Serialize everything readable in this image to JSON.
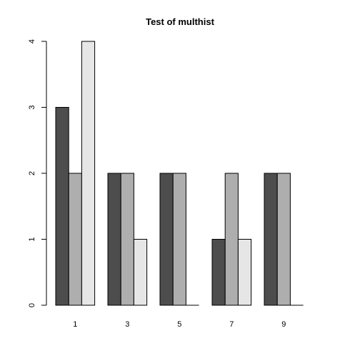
{
  "chart_data": {
    "type": "bar",
    "title": "Test of multhist",
    "xlabel": "",
    "ylabel": "",
    "categories": [
      "1",
      "3",
      "5",
      "7",
      "9"
    ],
    "series": [
      {
        "values": [
          3,
          2,
          2,
          1,
          2
        ],
        "color": "#4d4d4d"
      },
      {
        "values": [
          2,
          2,
          2,
          2,
          2
        ],
        "color": "#aeaeae"
      },
      {
        "values": [
          4,
          1,
          0,
          1,
          0
        ],
        "color": "#e6e6e6"
      }
    ],
    "ylim": [
      0,
      4
    ],
    "yticks": [
      "0",
      "1",
      "2",
      "3",
      "4"
    ],
    "grid": false,
    "legend": "none"
  }
}
